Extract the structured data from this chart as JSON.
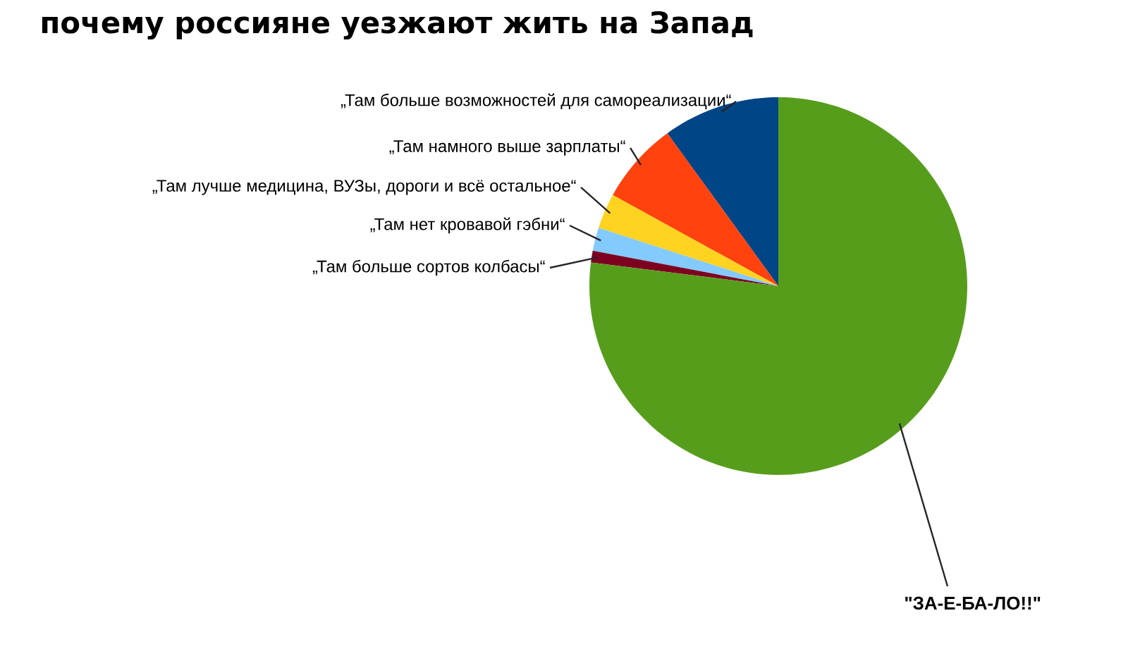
{
  "chart_data": {
    "type": "pie",
    "title": "почему россияне уезжают жить на Запад",
    "categories": [
      "„Там больше возможностей для самореализации“",
      "„Там намного выше зарплаты“",
      "„Там лучше медицина, ВУЗы, дороги и всё остальное“",
      "„Там нет кровавой гэбни“",
      "„Там больше сортов колбасы“",
      "\"ЗА-Е-БА-ЛО!!\""
    ],
    "values": [
      10,
      7,
      3,
      2,
      1,
      77
    ],
    "colors": [
      "#004586",
      "#ff420e",
      "#ffd320",
      "#83caff",
      "#7e0021",
      "#579d1c"
    ]
  }
}
